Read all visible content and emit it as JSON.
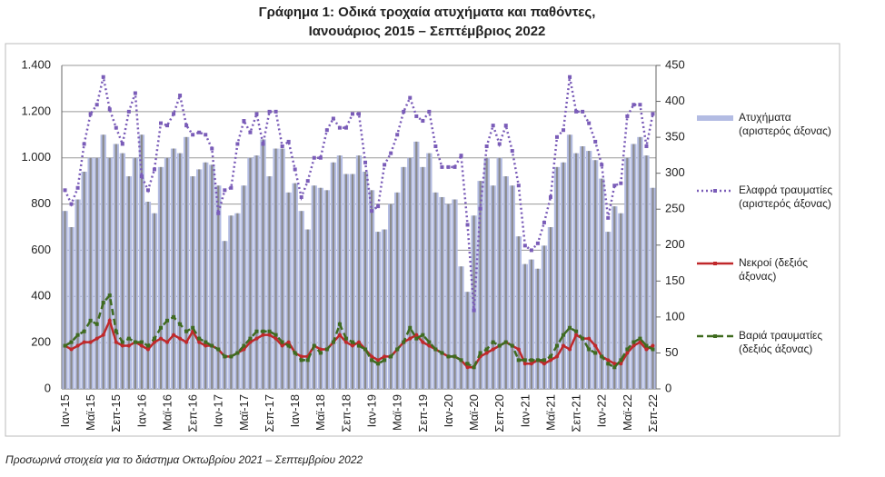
{
  "chart_data": {
    "type": "bar_line",
    "title": "Γράφημα 1: Οδικά τροχαία ατυχήματα και παθόντες,",
    "subtitle": "Ιανουάριος 2015 – Σεπτέμβριος 2022",
    "footnote": "Προσωρινά στοιχεία για το διάστημα Οκτωβρίου 2021 – Σεπτεμβρίου 2022",
    "categories": [
      "Ιαν-15",
      null,
      null,
      null,
      "Μαϊ-15",
      null,
      null,
      null,
      "Σεπ-15",
      null,
      null,
      null,
      "Ιαν-16",
      null,
      null,
      null,
      "Μαϊ-16",
      null,
      null,
      null,
      "Σεπ-16",
      null,
      null,
      null,
      "Ιαν-17",
      null,
      null,
      null,
      "Μαϊ-17",
      null,
      null,
      null,
      "Σεπ-17",
      null,
      null,
      null,
      "Ιαν-18",
      null,
      null,
      null,
      "Μαϊ-18",
      null,
      null,
      null,
      "Σεπ-18",
      null,
      null,
      null,
      "Ιαν-19",
      null,
      null,
      null,
      "Μαϊ-19",
      null,
      null,
      null,
      "Σεπ-19",
      null,
      null,
      null,
      "Ιαν-20",
      null,
      null,
      null,
      "Μαϊ-20",
      null,
      null,
      null,
      "Σεπ-20",
      null,
      null,
      null,
      "Ιαν-21",
      null,
      null,
      null,
      "Μαϊ-21",
      null,
      null,
      null,
      "Σεπ-21",
      null,
      null,
      null,
      "Ιαν-22",
      null,
      null,
      null,
      "Μαϊ-22",
      null,
      null,
      null,
      "Σεπ-22"
    ],
    "series": [
      {
        "name": "Ατυχήματα (αριστερός άξονας)",
        "kind": "bar",
        "color": "#b3bce3",
        "values": [
          770,
          700,
          820,
          940,
          1000,
          1000,
          1100,
          1000,
          1060,
          1020,
          920,
          1000,
          1100,
          810,
          760,
          960,
          1000,
          1040,
          1020,
          1090,
          920,
          950,
          980,
          970,
          880,
          640,
          750,
          760,
          880,
          1000,
          1010,
          1080,
          920,
          1040,
          1040,
          850,
          890,
          770,
          690,
          880,
          870,
          860,
          980,
          1010,
          930,
          930,
          1010,
          940,
          860,
          680,
          690,
          800,
          850,
          960,
          1000,
          1070,
          960,
          1020,
          850,
          830,
          800,
          820,
          530,
          420,
          750,
          900,
          1000,
          880,
          1000,
          920,
          880,
          660,
          540,
          560,
          520,
          620,
          700,
          960,
          980,
          1100,
          1020,
          1050,
          1030,
          990,
          910,
          680,
          790,
          760,
          1000,
          1060,
          1090,
          1010,
          870
        ]
      },
      {
        "name": "Ελαφρά τραυματίες (αριστερός άξονας)",
        "kind": "dotted",
        "color": "#7a5cb8",
        "values": [
          860,
          800,
          870,
          1060,
          1190,
          1230,
          1350,
          1210,
          1130,
          1060,
          1200,
          1280,
          920,
          860,
          950,
          1150,
          1140,
          1190,
          1270,
          1140,
          1100,
          1110,
          1100,
          1040,
          760,
          860,
          870,
          1060,
          1160,
          1110,
          1190,
          1060,
          1200,
          1200,
          1050,
          1070,
          950,
          830,
          900,
          1000,
          1000,
          1120,
          1170,
          1130,
          1130,
          1190,
          1190,
          980,
          770,
          790,
          970,
          1020,
          1100,
          1200,
          1260,
          1180,
          1160,
          1200,
          1050,
          960,
          960,
          960,
          1010,
          710,
          340,
          780,
          1050,
          1140,
          1060,
          1140,
          1030,
          880,
          620,
          600,
          630,
          720,
          830,
          1090,
          1120,
          1350,
          1200,
          1200,
          1150,
          1070,
          970,
          740,
          880,
          890,
          1180,
          1230,
          1230,
          1050,
          1190
        ]
      },
      {
        "name": "Νεκροί (δεξιός άξονας)",
        "kind": "line",
        "axis": "y2",
        "color": "#c0282a",
        "values": [
          60,
          55,
          60,
          65,
          65,
          70,
          75,
          95,
          65,
          60,
          60,
          65,
          60,
          55,
          65,
          70,
          65,
          75,
          70,
          65,
          80,
          65,
          60,
          60,
          55,
          45,
          45,
          50,
          55,
          65,
          70,
          75,
          75,
          70,
          60,
          65,
          50,
          45,
          45,
          60,
          55,
          55,
          65,
          75,
          65,
          60,
          65,
          55,
          45,
          40,
          45,
          45,
          55,
          65,
          70,
          75,
          65,
          60,
          55,
          50,
          45,
          45,
          40,
          30,
          30,
          45,
          50,
          55,
          60,
          65,
          60,
          55,
          35,
          35,
          40,
          35,
          40,
          45,
          60,
          55,
          75,
          70,
          70,
          60,
          45,
          40,
          35,
          35,
          50,
          60,
          65,
          55,
          60
        ]
      },
      {
        "name": "Βαριά τραυματίες (δεξιός άξονας)",
        "kind": "dashed",
        "axis": "y2",
        "color": "#3f6b1f",
        "values": [
          60,
          65,
          75,
          80,
          95,
          90,
          120,
          130,
          80,
          65,
          70,
          65,
          65,
          60,
          70,
          85,
          95,
          100,
          90,
          80,
          85,
          70,
          65,
          60,
          55,
          45,
          45,
          50,
          60,
          70,
          80,
          80,
          80,
          75,
          65,
          60,
          50,
          40,
          40,
          60,
          50,
          55,
          65,
          90,
          70,
          65,
          60,
          55,
          40,
          35,
          40,
          45,
          55,
          65,
          85,
          70,
          75,
          65,
          55,
          50,
          45,
          45,
          40,
          35,
          30,
          50,
          55,
          65,
          60,
          65,
          60,
          40,
          40,
          40,
          40,
          40,
          45,
          60,
          75,
          85,
          80,
          70,
          55,
          50,
          45,
          35,
          30,
          40,
          55,
          65,
          70,
          60,
          55
        ]
      }
    ],
    "ylim": [
      0,
      1400
    ],
    "yticks": [
      0,
      200,
      400,
      600,
      800,
      {
        "value": 1000,
        "label": "1.000"
      },
      {
        "value": 1200,
        "label": "1.200"
      },
      {
        "value": 1400,
        "label": "1.400"
      }
    ],
    "y2lim": [
      0,
      450
    ],
    "y2ticks": [
      0,
      50,
      100,
      150,
      200,
      250,
      300,
      350,
      400,
      450
    ],
    "grid": true
  }
}
